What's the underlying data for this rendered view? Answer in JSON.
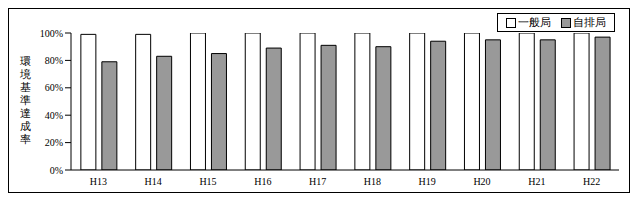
{
  "chart_data": {
    "type": "bar",
    "y_label": "環境基準達成率",
    "categories": [
      "H13",
      "H14",
      "H15",
      "H16",
      "H17",
      "H18",
      "H19",
      "H20",
      "H21",
      "H22"
    ],
    "series": [
      {
        "name": "一般局",
        "color": "#ffffff",
        "values": [
          99,
          99,
          100,
          100,
          100,
          100,
          100,
          100,
          100,
          100
        ]
      },
      {
        "name": "自排局",
        "color": "#999999",
        "values": [
          79,
          83,
          85,
          89,
          91,
          90,
          94,
          95,
          95,
          97
        ]
      }
    ],
    "ylim": [
      0,
      100
    ],
    "yticks": [
      {
        "value": 0,
        "label": "0%"
      },
      {
        "value": 20,
        "label": "20%"
      },
      {
        "value": 40,
        "label": "40%"
      },
      {
        "value": 60,
        "label": "60%"
      },
      {
        "value": 80,
        "label": "80%"
      },
      {
        "value": 100,
        "label": "100%"
      }
    ],
    "grid": false,
    "legend": "top-right"
  }
}
